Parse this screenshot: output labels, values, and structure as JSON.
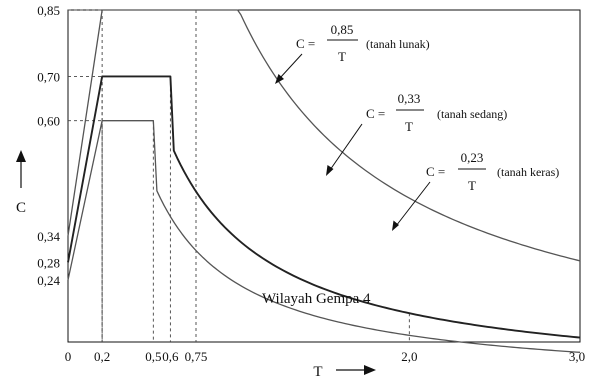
{
  "chart_data": {
    "type": "line",
    "annotation": "Wilayah Gempa 4",
    "xlabel": "T",
    "ylabel": "C",
    "xlim": [
      0,
      3.0
    ],
    "ylim": [
      0.1,
      0.85
    ],
    "x_ticks": [
      {
        "value": 0,
        "label": "0"
      },
      {
        "value": 0.2,
        "label": "0,2"
      },
      {
        "value": 0.5,
        "label": "0,5"
      },
      {
        "value": 0.6,
        "label": "0,6"
      },
      {
        "value": 0.75,
        "label": "0,75"
      },
      {
        "value": 2.0,
        "label": "2,0"
      },
      {
        "value": 3.0,
        "label": "3,0"
      }
    ],
    "y_ticks": [
      {
        "value": 0.85,
        "label": "0,85"
      },
      {
        "value": 0.7,
        "label": "0,70"
      },
      {
        "value": 0.6,
        "label": "0,60"
      },
      {
        "value": 0.34,
        "label": "0,34"
      },
      {
        "value": 0.28,
        "label": "0,28"
      },
      {
        "value": 0.24,
        "label": "0,24"
      }
    ],
    "series": [
      {
        "key": "lunak",
        "start": 0.34,
        "peak": 0.85,
        "rise_end": 0.2,
        "plateau_end": 0.75,
        "numerator": 0.85,
        "stroke": "#555555",
        "width": 1.3,
        "label": {
          "lhs": "C =",
          "num": "0,85",
          "den": "T",
          "soil": "(tanah lunak)"
        }
      },
      {
        "key": "sedang",
        "start": 0.28,
        "peak": 0.7,
        "rise_end": 0.2,
        "plateau_end": 0.6,
        "numerator": 0.33,
        "stroke": "#222222",
        "width": 1.9,
        "label": {
          "lhs": "C =",
          "num": "0,33",
          "den": "T",
          "soil": "(tanah sedang)"
        }
      },
      {
        "key": "keras",
        "start": 0.24,
        "peak": 0.6,
        "rise_end": 0.2,
        "plateau_end": 0.5,
        "numerator": 0.23,
        "stroke": "#555555",
        "width": 1.3,
        "label": {
          "lhs": "C =",
          "num": "0,23",
          "den": "T",
          "soil": "(tanah keras)"
        }
      }
    ]
  }
}
